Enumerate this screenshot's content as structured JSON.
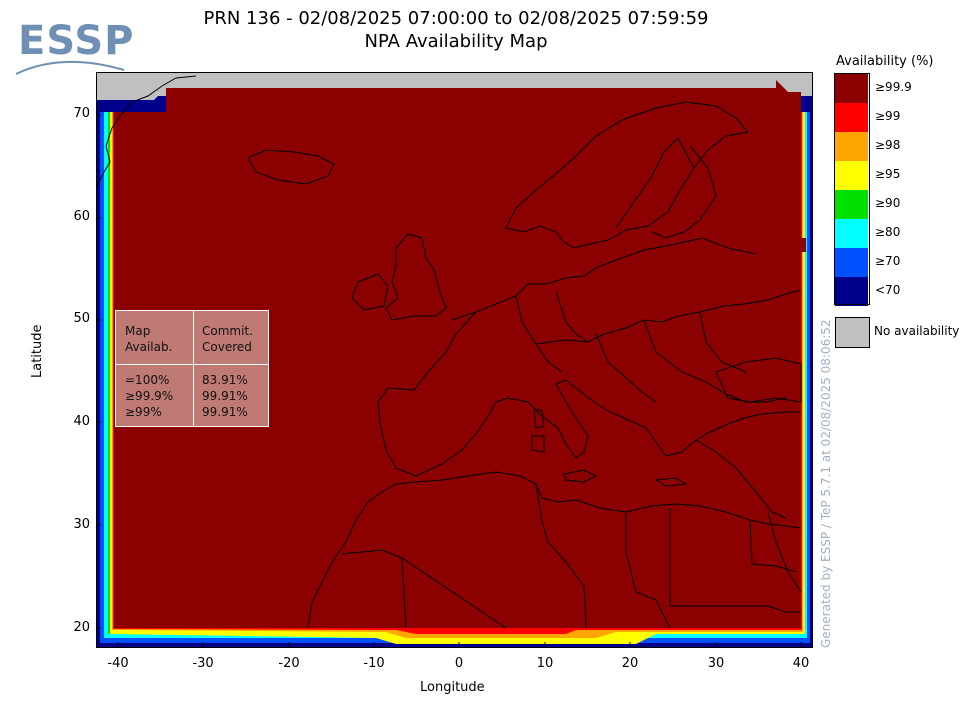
{
  "logo": {
    "text": "ESSP"
  },
  "title": {
    "line1": "PRN 136 - 02/08/2025 07:00:00 to 02/08/2025 07:59:59",
    "line2": "NPA Availability Map"
  },
  "axes": {
    "xlabel": "Longitude",
    "ylabel": "Latitude",
    "x_ticks": [
      "-40",
      "-30",
      "-20",
      "-10",
      "0",
      "10",
      "20",
      "30",
      "40"
    ],
    "y_ticks": [
      "70",
      "60",
      "50",
      "40",
      "30",
      "20"
    ],
    "x_range": [
      -42,
      42
    ],
    "y_range": [
      18,
      74
    ]
  },
  "legend": {
    "title": "Availability (%)",
    "items": [
      {
        "label": "≥99.9",
        "color": "#8b0000"
      },
      {
        "label": "≥99",
        "color": "#ff0000"
      },
      {
        "label": "≥98",
        "color": "#ffa500"
      },
      {
        "label": "≥95",
        "color": "#ffff00"
      },
      {
        "label": "≥90",
        "color": "#00e000"
      },
      {
        "label": "≥80",
        "color": "#00ffff"
      },
      {
        "label": "≥70",
        "color": "#0050ff"
      },
      {
        "label": "<70",
        "color": "#00008b"
      }
    ],
    "no_availability": "No availability"
  },
  "stats": {
    "header_col1": "Map\nAvailab.",
    "header_col2": "Commit.\nCovered",
    "rows_col1": "=100%\n≥99.9%\n≥99%",
    "rows_col2": "83.91%\n99.91%\n99.91%"
  },
  "credit": "Generated by ESSP / TeP 5.7.1 at 02/08/2025 08:06:52"
}
